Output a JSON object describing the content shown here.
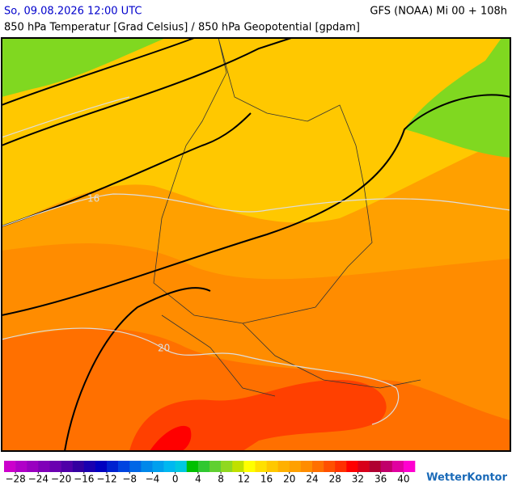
{
  "header": {
    "date": "So, 09.08.2026 12:00 UTC",
    "model": "GFS (NOAA) Mi 00 + 108h",
    "subtitle": "850 hPa Temperatur [Grad Celsius] / 850 hPa Geopotential [gpdam]"
  },
  "map": {
    "isotherm_labels": [
      "16",
      "20"
    ]
  },
  "legend": {
    "min": -30,
    "max": 42,
    "colors": [
      "#cc00cc",
      "#b000c8",
      "#9900c0",
      "#8000b8",
      "#6a00b0",
      "#5000a8",
      "#3300a0",
      "#1a00b0",
      "#0000c0",
      "#0022d0",
      "#0044e0",
      "#0066e6",
      "#0088ea",
      "#00a0ee",
      "#00b8f0",
      "#00c8e0",
      "#00c000",
      "#30c830",
      "#60d030",
      "#90d820",
      "#c0e000",
      "#ffff00",
      "#ffe000",
      "#ffc800",
      "#ffb000",
      "#ffa000",
      "#ff8c00",
      "#ff7000",
      "#ff5000",
      "#ff3000",
      "#ff0000",
      "#d8001a",
      "#b00030",
      "#c0006a",
      "#e000a0",
      "#ff00d0"
    ],
    "ticks": [
      {
        "value": -28,
        "label": "−28"
      },
      {
        "value": -24,
        "label": "−24"
      },
      {
        "value": -20,
        "label": "−20"
      },
      {
        "value": -16,
        "label": "−16"
      },
      {
        "value": -12,
        "label": "−12"
      },
      {
        "value": -8,
        "label": "−8"
      },
      {
        "value": -4,
        "label": "−4"
      },
      0,
      4,
      8,
      12,
      16,
      20,
      24,
      28,
      32,
      36,
      40
    ]
  },
  "brand": "WetterKontor"
}
